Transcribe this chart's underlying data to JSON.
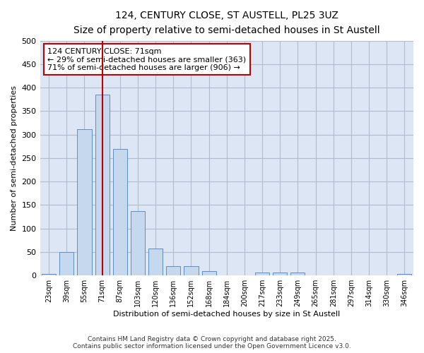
{
  "title_line1": "124, CENTURY CLOSE, ST AUSTELL, PL25 3UZ",
  "title_line2": "Size of property relative to semi-detached houses in St Austell",
  "xlabel": "Distribution of semi-detached houses by size in St Austell",
  "ylabel": "Number of semi-detached properties",
  "categories": [
    "23sqm",
    "39sqm",
    "55sqm",
    "71sqm",
    "87sqm",
    "103sqm",
    "120sqm",
    "136sqm",
    "152sqm",
    "168sqm",
    "184sqm",
    "200sqm",
    "217sqm",
    "233sqm",
    "249sqm",
    "265sqm",
    "281sqm",
    "297sqm",
    "314sqm",
    "330sqm",
    "346sqm"
  ],
  "values": [
    3,
    50,
    311,
    385,
    270,
    137,
    57,
    20,
    20,
    9,
    0,
    0,
    6,
    7,
    6,
    0,
    0,
    0,
    0,
    0,
    3
  ],
  "subject_bar_index": 3,
  "annotation_line1": "124 CENTURY CLOSE: 71sqm",
  "annotation_line2": "← 29% of semi-detached houses are smaller (363)",
  "annotation_line3": "71% of semi-detached houses are larger (906) →",
  "bar_color": "#c5d8ed",
  "bar_edge_color": "#5b8ec4",
  "highlight_line_color": "#c00000",
  "annotation_box_edge_color": "#c00000",
  "plot_bg_color": "#dce6f5",
  "background_color": "#ffffff",
  "grid_color": "#b0bcce",
  "ylim": [
    0,
    500
  ],
  "yticks": [
    0,
    50,
    100,
    150,
    200,
    250,
    300,
    350,
    400,
    450,
    500
  ],
  "footer_line1": "Contains HM Land Registry data © Crown copyright and database right 2025.",
  "footer_line2": "Contains public sector information licensed under the Open Government Licence v3.0."
}
